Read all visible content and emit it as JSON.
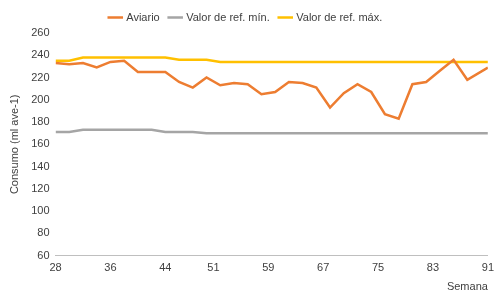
{
  "chart_data": {
    "type": "line",
    "x_label": "Semana",
    "y_label": "Consumo (ml ave-1)",
    "x": [
      28,
      30,
      32,
      34,
      36,
      38,
      40,
      42,
      44,
      46,
      48,
      50,
      52,
      54,
      56,
      58,
      60,
      62,
      64,
      66,
      68,
      70,
      72,
      74,
      76,
      78,
      80,
      82,
      84,
      86,
      88,
      91
    ],
    "series": [
      {
        "name": "Aviario",
        "color": "#ed7d31",
        "line_style": "solid",
        "marker": "none",
        "values": [
          233,
          232,
          233,
          229,
          234,
          235,
          225,
          225,
          225,
          216,
          211,
          220,
          213,
          215,
          214,
          205,
          207,
          216,
          215,
          211,
          193,
          206,
          214,
          207,
          187,
          183,
          214,
          216,
          226,
          236,
          218,
          229
        ]
      },
      {
        "name": "Valor de ref. mín.",
        "color": "#a5a5a5",
        "line_style": "solid",
        "marker": "none",
        "values": [
          171,
          171,
          173,
          173,
          173,
          173,
          173,
          173,
          171,
          171,
          171,
          170,
          170,
          170,
          170,
          170,
          170,
          170,
          170,
          170,
          170,
          170,
          170,
          170,
          170,
          170,
          170,
          170,
          170,
          170,
          170,
          170
        ]
      },
      {
        "name": "Valor de ref. máx.",
        "color": "#ffc000",
        "line_style": "solid",
        "marker": "none",
        "values": [
          235,
          235,
          238,
          238,
          238,
          238,
          238,
          238,
          238,
          236,
          236,
          236,
          234,
          234,
          234,
          234,
          234,
          234,
          234,
          234,
          234,
          234,
          234,
          234,
          234,
          234,
          234,
          234,
          234,
          234,
          234,
          234
        ]
      }
    ],
    "xlim": [
      28,
      91
    ],
    "xticks": [
      28,
      36,
      44,
      51,
      59,
      67,
      75,
      83,
      91
    ],
    "ylim": [
      60,
      260
    ],
    "yticks": [
      60,
      80,
      100,
      120,
      140,
      160,
      180,
      200,
      220,
      240,
      260
    ],
    "grid": false,
    "legend": "top"
  }
}
